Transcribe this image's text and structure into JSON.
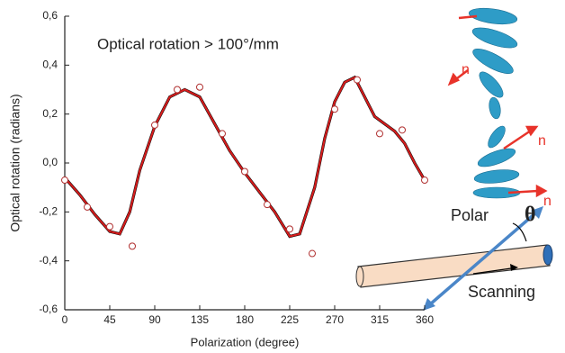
{
  "chart_data": {
    "type": "line",
    "annotation": "Optical rotation > 100°/mm",
    "x_label": "Polarization (degree)",
    "y_label": "Optical rotation (radians)",
    "xlim": [
      0,
      360
    ],
    "xticks": [
      0,
      45,
      90,
      135,
      180,
      225,
      270,
      315,
      360
    ],
    "ylim": [
      -0.6,
      0.6
    ],
    "yticks": [
      {
        "value": -0.6,
        "label": "-0,6"
      },
      {
        "value": -0.4,
        "label": "-0,4"
      },
      {
        "value": -0.2,
        "label": "-0,2"
      },
      {
        "value": 0,
        "label": "0,0"
      },
      {
        "value": 0.2,
        "label": "0,2"
      },
      {
        "value": 0.4,
        "label": "0,4"
      },
      {
        "value": 0.6,
        "label": "0,6"
      }
    ],
    "series": [
      {
        "type": "line",
        "color": "#d41c1c",
        "x": [
          0,
          15,
          30,
          45,
          55,
          65,
          75,
          90,
          105,
          120,
          135,
          150,
          165,
          180,
          195,
          210,
          225,
          235,
          250,
          260,
          270,
          280,
          290,
          300,
          310,
          320,
          330,
          340,
          350,
          360
        ],
        "values": [
          -0.06,
          -0.13,
          -0.21,
          -0.28,
          -0.29,
          -0.2,
          -0.03,
          0.15,
          0.27,
          0.3,
          0.27,
          0.16,
          0.05,
          -0.04,
          -0.12,
          -0.2,
          -0.3,
          -0.29,
          -0.1,
          0.1,
          0.25,
          0.33,
          0.35,
          0.27,
          0.19,
          0.16,
          0.13,
          0.08,
          0.0,
          -0.07
        ]
      },
      {
        "type": "scatter",
        "color": "#b03030",
        "x": [
          0,
          22.5,
          45,
          67.5,
          90,
          112.5,
          135,
          157.5,
          180,
          202.5,
          225,
          247.5,
          270,
          292.5,
          315,
          337.5,
          360
        ],
        "values": [
          -0.07,
          -0.18,
          -0.26,
          -0.34,
          0.155,
          0.3,
          0.31,
          0.12,
          -0.035,
          -0.17,
          -0.27,
          -0.37,
          0.22,
          0.34,
          0.12,
          0.135,
          -0.07
        ]
      }
    ]
  },
  "diagram": {
    "labels": [
      "n",
      "n",
      "n",
      "Polar",
      "θ",
      "Scanning"
    ]
  }
}
